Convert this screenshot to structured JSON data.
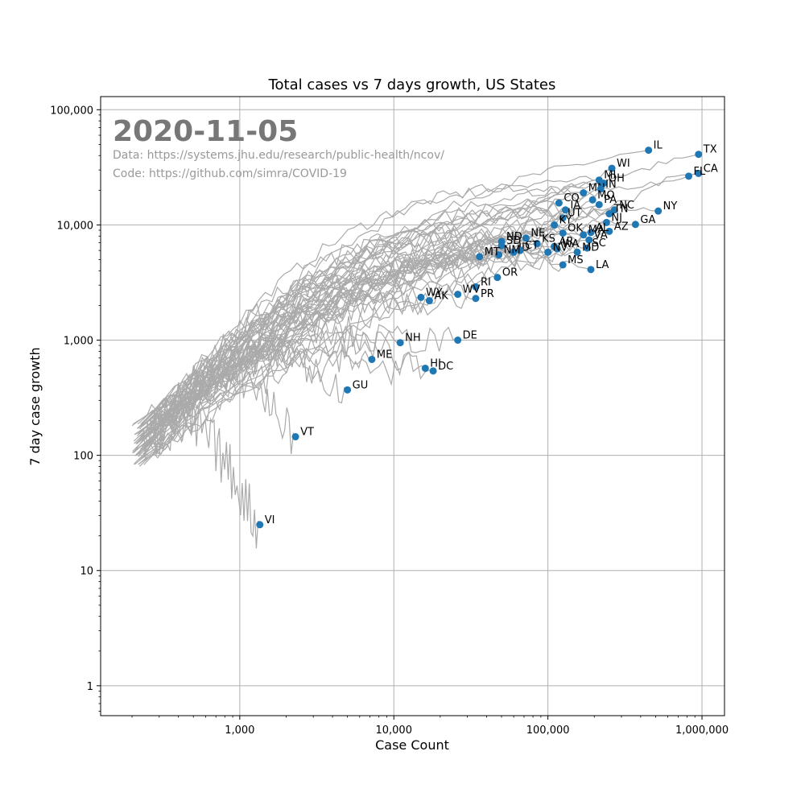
{
  "chart_data": {
    "type": "scatter",
    "title": "Total cases vs 7 days growth, US States",
    "xlabel": "Case Count",
    "ylabel": "7 day case growth",
    "xscale": "log",
    "yscale": "log",
    "xlim": [
      125,
      1400000
    ],
    "ylim": [
      0.55,
      130000
    ],
    "grid": true,
    "xticks": [
      {
        "value": 1000,
        "label": "1,000"
      },
      {
        "value": 10000,
        "label": "10,000"
      },
      {
        "value": 100000,
        "label": "100,000"
      },
      {
        "value": 1000000,
        "label": "1,000,000"
      }
    ],
    "yticks": [
      {
        "value": 1,
        "label": "1"
      },
      {
        "value": 10,
        "label": "10"
      },
      {
        "value": 100,
        "label": "100"
      },
      {
        "value": 1000,
        "label": "1,000"
      },
      {
        "value": 10000,
        "label": "10,000"
      },
      {
        "value": 100000,
        "label": "100,000"
      }
    ],
    "annotations": {
      "date": "2020-11-05",
      "data_source": "Data: https://systems.jhu.edu/research/public-health/ncov/",
      "code_source": "Code: https://github.com/simra/COVID-19"
    },
    "colors": {
      "points": "#1f77b4",
      "trajectories": "#aaaaaa",
      "grid": "#b0b0b0"
    },
    "points": [
      {
        "label": "TX",
        "x": 950000,
        "y": 41000
      },
      {
        "label": "CA",
        "x": 950000,
        "y": 28000
      },
      {
        "label": "FL",
        "x": 820000,
        "y": 26500
      },
      {
        "label": "IL",
        "x": 450000,
        "y": 44500
      },
      {
        "label": "NY",
        "x": 520000,
        "y": 13200
      },
      {
        "label": "GA",
        "x": 370000,
        "y": 10100
      },
      {
        "label": "WI",
        "x": 260000,
        "y": 31000
      },
      {
        "label": "OH",
        "x": 230000,
        "y": 23000
      },
      {
        "label": "MI",
        "x": 215000,
        "y": 24500
      },
      {
        "label": "MN",
        "x": 170000,
        "y": 19000
      },
      {
        "label": "IN",
        "x": 220000,
        "y": 20500
      },
      {
        "label": "MO",
        "x": 195000,
        "y": 16500
      },
      {
        "label": "PA",
        "x": 215000,
        "y": 15000
      },
      {
        "label": "NC",
        "x": 270000,
        "y": 13500
      },
      {
        "label": "TN",
        "x": 250000,
        "y": 12500
      },
      {
        "label": "NJ",
        "x": 240000,
        "y": 10500
      },
      {
        "label": "AZ",
        "x": 250000,
        "y": 8800
      },
      {
        "label": "CO",
        "x": 118000,
        "y": 15500
      },
      {
        "label": "IA",
        "x": 130000,
        "y": 13500
      },
      {
        "label": "UT",
        "x": 125000,
        "y": 11500
      },
      {
        "label": "KY",
        "x": 110000,
        "y": 10000
      },
      {
        "label": "OK",
        "x": 125000,
        "y": 8500
      },
      {
        "label": "AL",
        "x": 190000,
        "y": 8600
      },
      {
        "label": "MA",
        "x": 170000,
        "y": 8200
      },
      {
        "label": "VA",
        "x": 185000,
        "y": 7400
      },
      {
        "label": "SC",
        "x": 180000,
        "y": 6300
      },
      {
        "label": "MD",
        "x": 155000,
        "y": 5800
      },
      {
        "label": "ND",
        "x": 50000,
        "y": 7200
      },
      {
        "label": "SD",
        "x": 50000,
        "y": 6600
      },
      {
        "label": "NE",
        "x": 72000,
        "y": 7700
      },
      {
        "label": "KS",
        "x": 85000,
        "y": 6900
      },
      {
        "label": "AR",
        "x": 110000,
        "y": 6500
      },
      {
        "label": "WA",
        "x": 115000,
        "y": 6200
      },
      {
        "label": "NV",
        "x": 100000,
        "y": 5800
      },
      {
        "label": "ID",
        "x": 60000,
        "y": 5800
      },
      {
        "label": "CT",
        "x": 66000,
        "y": 6000
      },
      {
        "label": "NM",
        "x": 48000,
        "y": 5500
      },
      {
        "label": "MT",
        "x": 36000,
        "y": 5300
      },
      {
        "label": "MS",
        "x": 125000,
        "y": 4500
      },
      {
        "label": "LA",
        "x": 190000,
        "y": 4100
      },
      {
        "label": "OR",
        "x": 47000,
        "y": 3500
      },
      {
        "label": "RI",
        "x": 34000,
        "y": 2900
      },
      {
        "label": "WV",
        "x": 26000,
        "y": 2500
      },
      {
        "label": "PR",
        "x": 34000,
        "y": 2300
      },
      {
        "label": "WY",
        "x": 15000,
        "y": 2350
      },
      {
        "label": "AK",
        "x": 17000,
        "y": 2200
      },
      {
        "label": "NH",
        "x": 11000,
        "y": 950
      },
      {
        "label": "DE",
        "x": 26000,
        "y": 1000
      },
      {
        "label": "ME",
        "x": 7200,
        "y": 680
      },
      {
        "label": "HI",
        "x": 16000,
        "y": 570
      },
      {
        "label": "DC",
        "x": 18000,
        "y": 540
      },
      {
        "label": "GU",
        "x": 5000,
        "y": 370
      },
      {
        "label": "VT",
        "x": 2300,
        "y": 145
      },
      {
        "label": "VI",
        "x": 1350,
        "y": 25
      }
    ]
  }
}
